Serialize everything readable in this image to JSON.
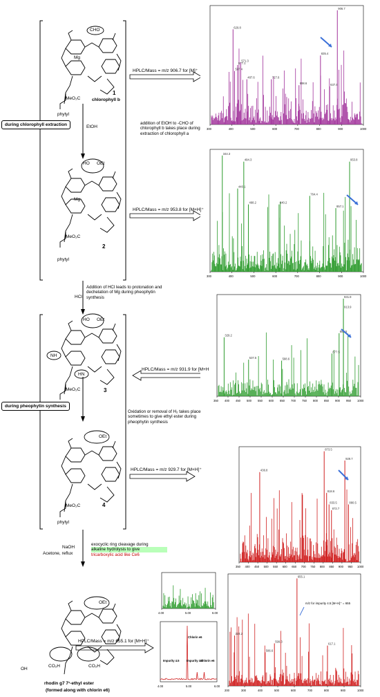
{
  "labels": {
    "chlorophyll_b": "chlorophyll b",
    "compound1": "1",
    "compound2": "2",
    "compound3": "3",
    "compound4": "4",
    "mg1": "Mg",
    "mg2": "Mg",
    "cho": "CHO",
    "oet_a": "OEt",
    "ho_a": "HO",
    "oet_b": "OEt",
    "ho_b": "HO",
    "oet_c": "OEt",
    "oet_d": "OEt",
    "meo2c_1": "MeO₂C",
    "meo2c_2": "MeO₂C",
    "meo2c_3": "MeO₂C",
    "meo2c_4": "MeO₂C",
    "phytyl_1": "phytyl",
    "phytyl_2": "phytyl",
    "phytyl_3": "phytyl",
    "phytyl_4": "phytyl",
    "nh_1": "NH",
    "hn_1": "HN",
    "co2h_a": "CO₂H",
    "co2h_b": "CO₂H",
    "oh": "OH",
    "rhodin_title": "rhodin g7 7¹-ethyl ester",
    "rhodin_sub": "(formed along with chlorin e6)"
  },
  "steps": {
    "etoh": "EtOH",
    "hcl": "HCl",
    "naoh": "NaOH",
    "acetone": "Acetone, reflux",
    "during_extraction": "during chlorophyll extraction",
    "during_pheophytin": "during pheophytin synthesis"
  },
  "notes": {
    "note1": "addition of EtOH to -CHO of chlorophyll b takes place during extraction of chlorophyll a",
    "note2": "Addition of HCl leads to protonation and dechelation of Mg during pheophytin synthesis",
    "note3": "Oxidation or removal of H₂ takes place sometimes to give ethyl ester during pheophytin synthesis",
    "note4_a": "exocyclic ring cleavage during",
    "note4_b": "alkaline hydrolysis to give",
    "note4_c": "tricarboxylic acid like Ce6"
  },
  "hplc": {
    "h1": "HPLC/Mass = m/z 906.7 for [M]⁺",
    "h2": "HPLC/Mass = m/z 953.8 for [M+H]⁺",
    "h3": "HPLC/Mass = m/z 931.9 for [M+H",
    "h4": "HPLC/Mass = m/z 929.7 for [M+H]⁺",
    "h5": "HPLC/Mass = m/z 655.1 for [M+H]⁺"
  },
  "spectra": {
    "s1": {
      "color": "#a0309a",
      "xticks": [
        "300",
        "400",
        "500",
        "600",
        "700",
        "800",
        "900",
        "1000"
      ],
      "peaks": [
        "906.7",
        "629.8",
        "835.4",
        "577.1",
        "537.4",
        "487.6",
        "727.6",
        "698.6",
        "637.4",
        "571.3"
      ]
    },
    "s2": {
      "color": "#2a9a2a",
      "xticks": [
        "300",
        "400",
        "500",
        "600",
        "700",
        "800",
        "900",
        "1000"
      ],
      "peaks": [
        "953.8",
        "344.3",
        "494.3",
        "764.4",
        "440.1",
        "498.2",
        "640.2",
        "857.1"
      ]
    },
    "s3": {
      "color": "#2a9a2a",
      "xticks": [
        "350",
        "400",
        "450",
        "500",
        "550",
        "600",
        "650",
        "700",
        "750",
        "800",
        "850",
        "900",
        "950",
        "1000"
      ],
      "peaks": [
        "931.9",
        "913.9",
        "880.5",
        "329.2",
        "537.5",
        "598.6",
        "877.5"
      ]
    },
    "s4": {
      "color": "#d02020",
      "xticks": [
        "350",
        "400",
        "450",
        "500",
        "550",
        "600",
        "650",
        "700",
        "750",
        "800",
        "850",
        "900",
        "950",
        "1000"
      ],
      "peaks": [
        "873.5",
        "436.8",
        "929.7",
        "818.6",
        "833.5",
        "872.7",
        "880.5"
      ]
    },
    "s5a": {
      "color": "#2a9a2a",
      "xticks": [
        "4.00",
        "5.00",
        "6.00"
      ]
    },
    "s5b": {
      "color": "#d02020",
      "labels": [
        "Chlorin e6",
        "Impurity 4.5",
        "Impurity 4.6",
        "Chlorin e6"
      ],
      "xticks": [
        "4.00",
        "5.00",
        "6.00"
      ]
    },
    "s5c": {
      "color": "#d02020",
      "peaks": [
        "655.1",
        "224.2",
        "599.3",
        "617.1",
        "586.6"
      ],
      "annotation": "m/z for impurity 4.5 [M+H]⁺ = 655",
      "xticks": [
        "200",
        "300",
        "400",
        "500",
        "600",
        "700",
        "800",
        "900",
        "1000"
      ]
    }
  }
}
